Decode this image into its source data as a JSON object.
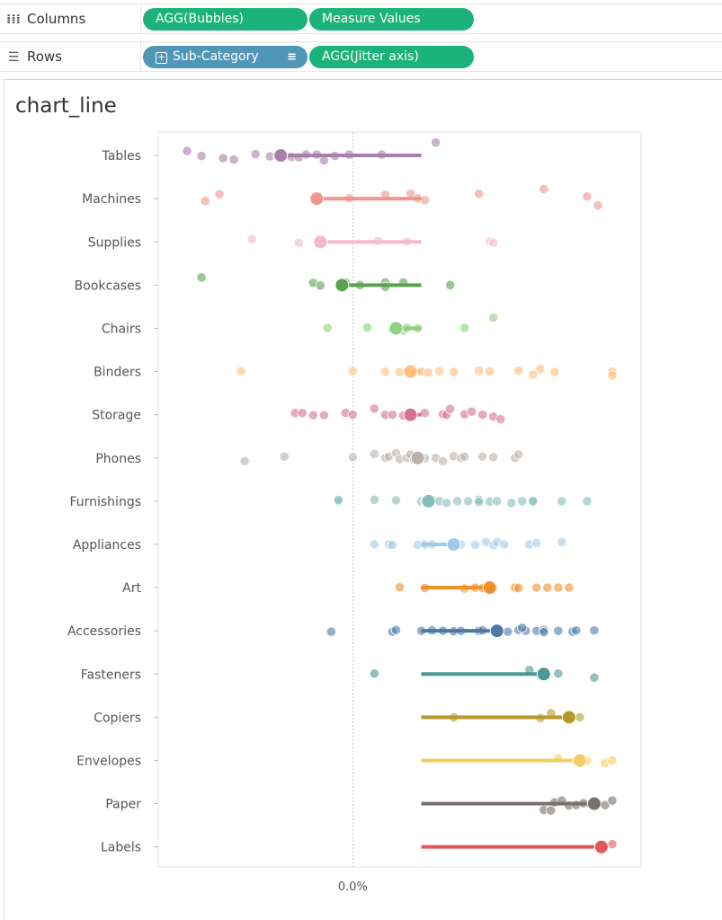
{
  "shelves": {
    "columns": {
      "label": "Columns",
      "icon": "columns-icon",
      "pills": [
        "AGG(Bubbles)",
        "Measure Values"
      ]
    },
    "rows": {
      "label": "Rows",
      "icon": "rows-icon",
      "pills": [
        "Sub-Category",
        "AGG(Jitter axis)"
      ]
    }
  },
  "colors": {
    "shelf_pill_green": "#1bb37b",
    "shelf_pill_blue": "#4f96b7"
  },
  "chart_data": {
    "type": "scatter",
    "title": "chart_line",
    "x_tick_labels": [
      {
        "value": 0,
        "label": "0.0%"
      }
    ],
    "xlim": [
      -0.54,
      0.8
    ],
    "baseline_x": 0.19,
    "grid": false,
    "reference_line_x": 0,
    "categories": [
      "Tables",
      "Machines",
      "Supplies",
      "Bookcases",
      "Chairs",
      "Binders",
      "Storage",
      "Phones",
      "Furnishings",
      "Appliances",
      "Art",
      "Accessories",
      "Fasteners",
      "Copiers",
      "Envelopes",
      "Paper",
      "Labels"
    ],
    "series": [
      {
        "category": "Tables",
        "color": "#a77fa8",
        "mean": -0.2,
        "points": [
          [
            -0.46,
            -0.5
          ],
          [
            -0.42,
            0.05
          ],
          [
            -0.36,
            0.3
          ],
          [
            -0.33,
            0.45
          ],
          [
            -0.27,
            -0.15
          ],
          [
            -0.23,
            0.1
          ],
          [
            -0.21,
            -0.05
          ],
          [
            -0.19,
            0.0
          ],
          [
            -0.17,
            0.15
          ],
          [
            -0.15,
            0.2
          ],
          [
            -0.13,
            -0.1
          ],
          [
            -0.1,
            -0.1
          ],
          [
            -0.05,
            0.05
          ],
          [
            -0.01,
            -0.1
          ],
          [
            -0.08,
            0.55
          ],
          [
            0.08,
            -0.1
          ],
          [
            0.23,
            -1.45
          ]
        ]
      },
      {
        "category": "Machines",
        "color": "#f0958f",
        "mean": -0.1,
        "points": [
          [
            -0.41,
            0.25
          ],
          [
            -0.37,
            -0.5
          ],
          [
            -0.1,
            0.0
          ],
          [
            -0.01,
            -0.05
          ],
          [
            0.09,
            -0.45
          ],
          [
            0.16,
            -0.55
          ],
          [
            0.18,
            -0.05
          ],
          [
            0.2,
            0.15
          ],
          [
            0.35,
            -0.55
          ],
          [
            0.53,
            -1.05
          ],
          [
            0.65,
            -0.25
          ],
          [
            0.68,
            0.75
          ]
        ]
      },
      {
        "category": "Supplies",
        "color": "#f6b9cb",
        "mean": -0.09,
        "points": [
          [
            -0.28,
            -0.3
          ],
          [
            -0.15,
            0.1
          ],
          [
            0.07,
            -0.1
          ],
          [
            0.15,
            -0.05
          ],
          [
            0.38,
            -0.05
          ],
          [
            0.39,
            0.1
          ]
        ]
      },
      {
        "category": "Bookcases",
        "color": "#59a14f",
        "mean": -0.03,
        "points": [
          [
            -0.42,
            -0.85
          ],
          [
            -0.11,
            -0.25
          ],
          [
            -0.09,
            0.05
          ],
          [
            -0.02,
            -0.3
          ],
          [
            0.02,
            0.0
          ],
          [
            0.09,
            -0.3
          ],
          [
            0.09,
            0.2
          ],
          [
            0.14,
            -0.3
          ],
          [
            0.27,
            0.0
          ]
        ]
      },
      {
        "category": "Chairs",
        "color": "#8cd17d",
        "mean": 0.12,
        "points": [
          [
            -0.07,
            -0.05
          ],
          [
            0.04,
            -0.1
          ],
          [
            0.11,
            0.1
          ],
          [
            0.14,
            0.25
          ],
          [
            0.15,
            -0.05
          ],
          [
            0.18,
            0.0
          ],
          [
            0.31,
            -0.05
          ],
          [
            0.39,
            -1.2
          ]
        ]
      },
      {
        "category": "Binders",
        "color": "#ffbe7d",
        "mean": 0.16,
        "points": [
          [
            -0.31,
            -0.05
          ],
          [
            0.0,
            -0.05
          ],
          [
            0.09,
            0.0
          ],
          [
            0.13,
            0.05
          ],
          [
            0.16,
            -0.05
          ],
          [
            0.19,
            0.0
          ],
          [
            0.21,
            0.1
          ],
          [
            0.24,
            -0.05
          ],
          [
            0.28,
            0.05
          ],
          [
            0.35,
            -0.1
          ],
          [
            0.38,
            0.0
          ],
          [
            0.46,
            -0.1
          ],
          [
            0.5,
            0.35
          ],
          [
            0.52,
            -0.3
          ],
          [
            0.56,
            0.05
          ],
          [
            0.72,
            0.0
          ],
          [
            0.72,
            0.45
          ]
        ]
      },
      {
        "category": "Storage",
        "color": "#d37295",
        "mean": 0.16,
        "points": [
          [
            -0.16,
            -0.2
          ],
          [
            -0.14,
            -0.2
          ],
          [
            -0.11,
            0.05
          ],
          [
            -0.08,
            0.05
          ],
          [
            -0.02,
            -0.2
          ],
          [
            0.0,
            0.0
          ],
          [
            0.06,
            -0.7
          ],
          [
            0.09,
            0.0
          ],
          [
            0.11,
            0.0
          ],
          [
            0.14,
            0.1
          ],
          [
            0.2,
            -0.2
          ],
          [
            0.25,
            -0.05
          ],
          [
            0.26,
            0.0
          ],
          [
            0.27,
            -0.65
          ],
          [
            0.31,
            -0.05
          ],
          [
            0.33,
            -0.35
          ],
          [
            0.36,
            0.0
          ],
          [
            0.39,
            0.2
          ],
          [
            0.41,
            0.5
          ]
        ]
      },
      {
        "category": "Phones",
        "color": "#bab0ac",
        "mean": 0.18,
        "points": [
          [
            -0.3,
            0.35
          ],
          [
            -0.19,
            -0.15
          ],
          [
            0.0,
            -0.1
          ],
          [
            0.06,
            -0.45
          ],
          [
            0.09,
            0.0
          ],
          [
            0.1,
            -0.15
          ],
          [
            0.12,
            -0.55
          ],
          [
            0.13,
            0.15
          ],
          [
            0.15,
            0.0
          ],
          [
            0.16,
            -0.4
          ],
          [
            0.17,
            0.2
          ],
          [
            0.2,
            0.05
          ],
          [
            0.23,
            0.0
          ],
          [
            0.25,
            0.35
          ],
          [
            0.28,
            -0.2
          ],
          [
            0.3,
            0.0
          ],
          [
            0.31,
            -0.15
          ],
          [
            0.36,
            -0.15
          ],
          [
            0.39,
            -0.1
          ],
          [
            0.45,
            0.0
          ],
          [
            0.46,
            -0.4
          ]
        ]
      },
      {
        "category": "Furnishings",
        "color": "#86bcb6",
        "mean": 0.21,
        "points": [
          [
            -0.04,
            0.0
          ],
          [
            -0.04,
            -0.15
          ],
          [
            0.06,
            -0.15
          ],
          [
            0.12,
            -0.1
          ],
          [
            0.19,
            0.0
          ],
          [
            0.2,
            0.0
          ],
          [
            0.22,
            -0.15
          ],
          [
            0.24,
            0.0
          ],
          [
            0.26,
            0.2
          ],
          [
            0.29,
            0.0
          ],
          [
            0.32,
            0.0
          ],
          [
            0.35,
            -0.15
          ],
          [
            0.35,
            0.1
          ],
          [
            0.38,
            0.05
          ],
          [
            0.4,
            0.0
          ],
          [
            0.44,
            0.2
          ],
          [
            0.47,
            0.0
          ],
          [
            0.5,
            -0.05
          ],
          [
            0.5,
            0.0
          ],
          [
            0.58,
            0.0
          ],
          [
            0.65,
            0.0
          ]
        ]
      },
      {
        "category": "Appliances",
        "color": "#a0cbe8",
        "mean": 0.28,
        "points": [
          [
            0.06,
            0.0
          ],
          [
            0.1,
            0.0
          ],
          [
            0.11,
            0.05
          ],
          [
            0.18,
            0.05
          ],
          [
            0.2,
            0.0
          ],
          [
            0.22,
            0.0
          ],
          [
            0.3,
            0.0
          ],
          [
            0.34,
            0.05
          ],
          [
            0.37,
            -0.25
          ],
          [
            0.39,
            0.1
          ],
          [
            0.4,
            -0.25
          ],
          [
            0.42,
            0.0
          ],
          [
            0.49,
            0.0
          ],
          [
            0.51,
            -0.15
          ],
          [
            0.58,
            -0.25
          ]
        ]
      },
      {
        "category": "Art",
        "color": "#f28e2b",
        "mean": 0.38,
        "points": [
          [
            0.13,
            -0.05
          ],
          [
            0.2,
            0.05
          ],
          [
            0.31,
            0.1
          ],
          [
            0.34,
            0.0
          ],
          [
            0.36,
            0.05
          ],
          [
            0.39,
            0.0
          ],
          [
            0.45,
            0.0
          ],
          [
            0.46,
            0.05
          ],
          [
            0.51,
            0.0
          ],
          [
            0.54,
            0.0
          ],
          [
            0.57,
            0.0
          ],
          [
            0.6,
            0.0
          ]
        ]
      },
      {
        "category": "Accessories",
        "color": "#4e79a7",
        "mean": 0.4,
        "points": [
          [
            -0.06,
            0.1
          ],
          [
            0.11,
            0.1
          ],
          [
            0.12,
            -0.1
          ],
          [
            0.19,
            0.0
          ],
          [
            0.22,
            -0.05
          ],
          [
            0.25,
            0.0
          ],
          [
            0.28,
            0.05
          ],
          [
            0.3,
            0.0
          ],
          [
            0.35,
            0.0
          ],
          [
            0.36,
            -0.05
          ],
          [
            0.4,
            0.0
          ],
          [
            0.43,
            0.1
          ],
          [
            0.46,
            -0.1
          ],
          [
            0.48,
            0.0
          ],
          [
            0.51,
            0.0
          ],
          [
            0.53,
            -0.1
          ],
          [
            0.53,
            0.15
          ],
          [
            0.57,
            0.0
          ],
          [
            0.61,
            0.1
          ],
          [
            0.62,
            -0.05
          ],
          [
            0.67,
            -0.05
          ],
          [
            0.47,
            -0.35
          ]
        ]
      },
      {
        "category": "Fasteners",
        "color": "#499894",
        "mean": 0.53,
        "points": [
          [
            0.06,
            -0.05
          ],
          [
            0.49,
            -0.45
          ],
          [
            0.52,
            0.05
          ],
          [
            0.57,
            -0.05
          ],
          [
            0.67,
            0.4
          ]
        ]
      },
      {
        "category": "Copiers",
        "color": "#b6992d",
        "mean": 0.6,
        "points": [
          [
            0.28,
            0.0
          ],
          [
            0.52,
            0.1
          ],
          [
            0.55,
            -0.45
          ],
          [
            0.63,
            0.0
          ]
        ]
      },
      {
        "category": "Envelopes",
        "color": "#f1ce63",
        "mean": 0.63,
        "points": [
          [
            0.57,
            -0.25
          ],
          [
            0.64,
            0.15
          ],
          [
            0.65,
            0.0
          ],
          [
            0.7,
            0.3
          ],
          [
            0.72,
            0.0
          ]
        ]
      },
      {
        "category": "Paper",
        "color": "#79706e",
        "mean": 0.67,
        "points": [
          [
            0.53,
            0.7
          ],
          [
            0.55,
            0.75
          ],
          [
            0.56,
            -0.15
          ],
          [
            0.58,
            -0.35
          ],
          [
            0.6,
            0.2
          ],
          [
            0.62,
            0.15
          ],
          [
            0.64,
            -0.05
          ],
          [
            0.66,
            0.05
          ],
          [
            0.68,
            0.0
          ],
          [
            0.7,
            0.15
          ],
          [
            0.72,
            -0.35
          ]
        ]
      },
      {
        "category": "Labels",
        "color": "#e15759",
        "mean": 0.69,
        "points": [
          [
            0.69,
            0.4
          ],
          [
            0.72,
            -0.3
          ]
        ]
      }
    ]
  }
}
